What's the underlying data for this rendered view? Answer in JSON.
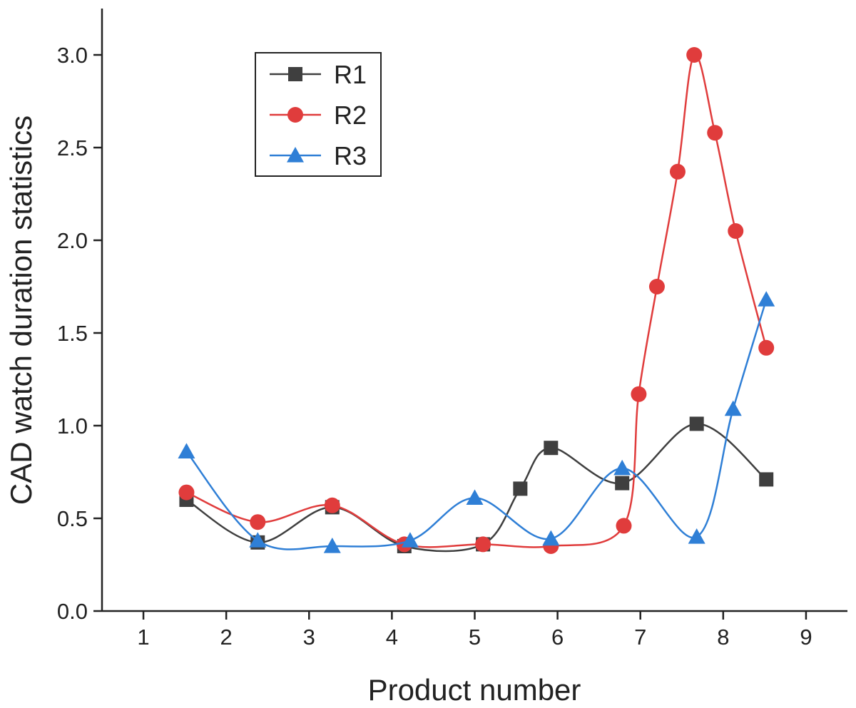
{
  "chart_data": {
    "type": "line",
    "title": "",
    "xlabel": "Product number",
    "ylabel": "CAD watch duration statistics",
    "xlim": [
      0.5,
      9.5
    ],
    "ylim": [
      0,
      3.25
    ],
    "xticks": [
      1,
      2,
      3,
      4,
      5,
      6,
      7,
      8,
      9
    ],
    "yticks": [
      0.0,
      0.5,
      1.0,
      1.5,
      2.0,
      2.5,
      3.0
    ],
    "ytick_labels": [
      "0.0",
      "0.5",
      "1.0",
      "1.5",
      "2.0",
      "2.5",
      "3.0"
    ],
    "grid": false,
    "legend_position": "top-left",
    "series": [
      {
        "name": "R1",
        "color": "#3f3f3f",
        "marker": "square",
        "x": [
          1.52,
          2.38,
          3.28,
          4.15,
          5.1,
          5.55,
          5.92,
          6.78,
          7.68,
          8.52
        ],
        "y": [
          0.6,
          0.37,
          0.56,
          0.35,
          0.36,
          0.66,
          0.88,
          0.69,
          1.01,
          0.71
        ]
      },
      {
        "name": "R2",
        "color": "#e03c3c",
        "marker": "circle",
        "x": [
          1.52,
          2.38,
          3.28,
          4.15,
          5.1,
          5.92,
          6.8,
          6.98,
          7.2,
          7.45,
          7.65,
          7.9,
          8.15,
          8.52
        ],
        "y": [
          0.64,
          0.48,
          0.57,
          0.36,
          0.36,
          0.35,
          0.46,
          1.17,
          1.75,
          2.37,
          3.0,
          2.58,
          2.05,
          1.42
        ]
      },
      {
        "name": "R3",
        "color": "#2f7fd6",
        "marker": "triangle",
        "x": [
          1.52,
          2.38,
          3.28,
          4.22,
          5.0,
          5.92,
          6.78,
          7.68,
          8.12,
          8.52
        ],
        "y": [
          0.86,
          0.38,
          0.35,
          0.38,
          0.61,
          0.39,
          0.77,
          0.4,
          1.09,
          1.68
        ]
      }
    ]
  }
}
